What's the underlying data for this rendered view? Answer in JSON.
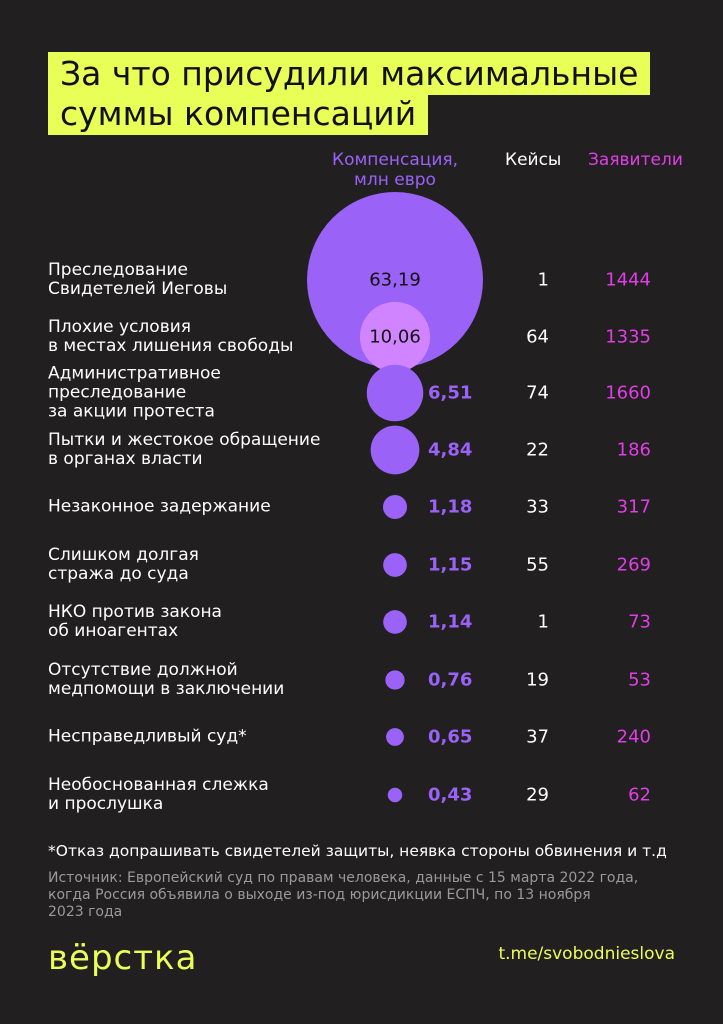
{
  "chart_data": {
    "type": "bubble",
    "title": "За что присудили максимальные\nсуммы компенсаций",
    "categories": [
      "Преследование\nСвидетелей Иеговы",
      "Плохие условия\nв местах лишения свободы",
      "Административное\nпреследование\nза акции протеста",
      "Пытки и жестокое обращение\nв органах власти",
      "Незаконное задержание",
      "Слишком долгая\nстража до суда",
      "НКО против закона\nоб иноагентах",
      "Отсутствие должной\nмедпомощи в заключении",
      "Несправедливый суд*",
      "Необоснованная слежка\nи прослушка"
    ],
    "series": [
      {
        "name": "Компенсация,\nмлн евро",
        "color": "#9a62f7",
        "values": [
          63.19,
          10.06,
          6.51,
          4.84,
          1.18,
          1.15,
          1.14,
          0.76,
          0.65,
          0.43
        ],
        "value_labels": [
          "63,19",
          "10,06",
          "6,51",
          "4,84",
          "1,18",
          "1,15",
          "1,14",
          "0,76",
          "0,65",
          "0,43"
        ]
      },
      {
        "name": "Кейсы",
        "color": "#ffffff",
        "values": [
          1,
          64,
          74,
          22,
          33,
          55,
          1,
          19,
          37,
          29
        ]
      },
      {
        "name": "Заявители",
        "color": "#e03ee6",
        "values": [
          1444,
          1335,
          1660,
          186,
          317,
          269,
          73,
          53,
          240,
          62
        ]
      }
    ],
    "footnote": "*Отказ допрашивать свидетелей защиты, неявка стороны обвинения и т.д",
    "source": "Источник: Европейский суд по правам человека, данные с 15 марта 2022 года,\nкогда Россия объявила о выходе из-под юрисдикции ЕСПЧ, по 13 ноября\n2023 года",
    "logo": "вёрстка",
    "link": "t.me/svobodnieslova"
  }
}
